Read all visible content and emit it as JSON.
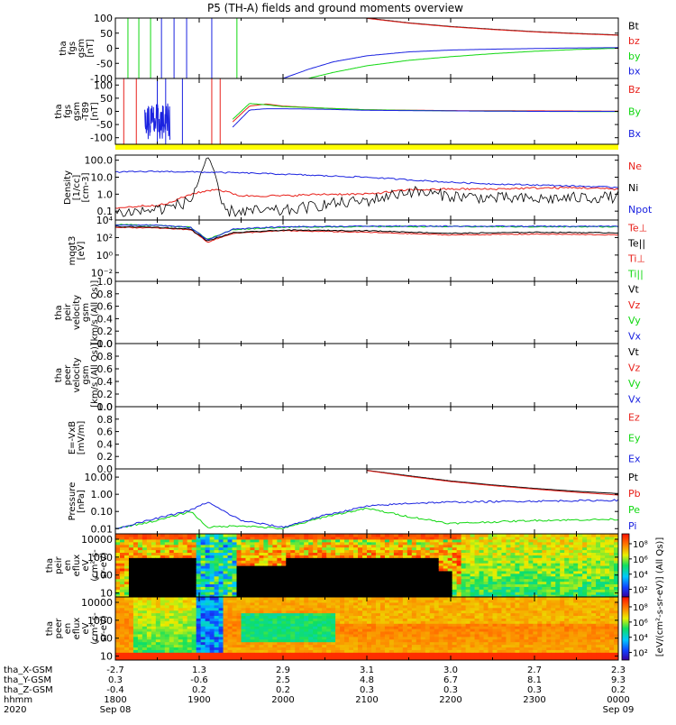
{
  "title": "P5 (TH-A) fields and ground moments overview",
  "colors": {
    "black": "#000000",
    "red": "#e8201a",
    "green": "#10d810",
    "blue": "#1a22e0",
    "yellow": "#ffff00",
    "bg": "#ffffff"
  },
  "panels": [
    {
      "id": "fgs",
      "ylabel": [
        "tha",
        "fgs",
        "gsm",
        "[nT]"
      ],
      "scale": "linear",
      "ylim": [
        -100,
        100
      ],
      "ticks": [
        "100",
        "50",
        "0",
        "-50",
        "-100"
      ],
      "tick_values": [
        100,
        50,
        0,
        -50,
        -100
      ],
      "legend": [
        {
          "label": "Bt",
          "color": "#000000"
        },
        {
          "label": "bz",
          "color": "#e8201a"
        },
        {
          "label": "by",
          "color": "#10d810"
        },
        {
          "label": "bx",
          "color": "#1a22e0"
        }
      ]
    },
    {
      "id": "fgs_dip",
      "ylabel": [
        "tha",
        "fgs",
        "gsm",
        "-T89",
        "[nT]"
      ],
      "scale": "linear",
      "ylim": [
        -125,
        125
      ],
      "ticks": [
        "100",
        "50",
        "0",
        "-50",
        "-100"
      ],
      "tick_values": [
        100,
        50,
        0,
        -50,
        -100
      ],
      "legend": [
        {
          "label": "Bz",
          "color": "#e8201a"
        },
        {
          "label": "By",
          "color": "#10d810"
        },
        {
          "label": "Bx",
          "color": "#1a22e0"
        }
      ]
    },
    {
      "id": "density",
      "ylabel": [
        "Density",
        "[1/cc]",
        "[cm-3]"
      ],
      "scale": "log",
      "ylim": [
        0.03,
        200
      ],
      "ticks": [
        "100.0",
        "10.0",
        "1.0",
        "0.1"
      ],
      "tick_values": [
        100,
        10,
        1,
        0.1
      ],
      "legend": [
        {
          "label": "Ne",
          "color": "#e8201a"
        },
        {
          "label": "Ni",
          "color": "#000000"
        },
        {
          "label": "Npot",
          "color": "#1a22e0"
        }
      ]
    },
    {
      "id": "temp",
      "ylabel": [
        "mqgt3",
        "[eV]"
      ],
      "scale": "log",
      "ylim": [
        0.001,
        10000
      ],
      "ticks": [
        "10⁴",
        "10²",
        "10⁰",
        "10⁻²"
      ],
      "tick_values": [
        10000,
        100,
        1,
        0.01
      ],
      "legend": [
        {
          "label": "Te⊥",
          "color": "#e8201a"
        },
        {
          "label": "Te||",
          "color": "#000000"
        },
        {
          "label": "Ti⊥",
          "color": "#e8201a"
        },
        {
          "label": "Ti||",
          "color": "#10d810"
        }
      ]
    },
    {
      "id": "peir_vel",
      "ylabel": [
        "tha",
        "peir",
        "velocity",
        "gsm",
        "[km/s (All Qs)]"
      ],
      "scale": "linear",
      "ylim": [
        0,
        1
      ],
      "ticks": [
        "1.0",
        "0.8",
        "0.6",
        "0.4",
        "0.2",
        "0.0"
      ],
      "tick_values": [
        1,
        0.8,
        0.6,
        0.4,
        0.2,
        0
      ],
      "legend": [
        {
          "label": "Vt",
          "color": "#000000"
        },
        {
          "label": "Vz",
          "color": "#e8201a"
        },
        {
          "label": "Vy",
          "color": "#10d810"
        },
        {
          "label": "Vx",
          "color": "#1a22e0"
        }
      ]
    },
    {
      "id": "peer_vel",
      "ylabel": [
        "tha",
        "peer",
        "velocity",
        "gsm",
        "[km/s (All Qs)]"
      ],
      "scale": "linear",
      "ylim": [
        0,
        1
      ],
      "ticks": [
        "1.0",
        "0.8",
        "0.6",
        "0.4",
        "0.2",
        "0.0"
      ],
      "tick_values": [
        1,
        0.8,
        0.6,
        0.4,
        0.2,
        0
      ],
      "legend": [
        {
          "label": "Vt",
          "color": "#000000"
        },
        {
          "label": "Vz",
          "color": "#e8201a"
        },
        {
          "label": "Vy",
          "color": "#10d810"
        },
        {
          "label": "Vx",
          "color": "#1a22e0"
        }
      ]
    },
    {
      "id": "efield",
      "ylabel": [
        "E=-VxB",
        "[mV/m]"
      ],
      "scale": "linear",
      "ylim": [
        0,
        1
      ],
      "ticks": [
        "1.0",
        "0.8",
        "0.6",
        "0.4",
        "0.2",
        "0.0"
      ],
      "tick_values": [
        1,
        0.8,
        0.6,
        0.4,
        0.2,
        0
      ],
      "legend": [
        {
          "label": "Ez",
          "color": "#e8201a"
        },
        {
          "label": "Ey",
          "color": "#10d810"
        },
        {
          "label": "Ex",
          "color": "#1a22e0"
        }
      ]
    },
    {
      "id": "pressure",
      "ylabel": [
        "Pressure",
        "[nPa]"
      ],
      "scale": "log",
      "ylim": [
        0.005,
        30
      ],
      "ticks": [
        "10.00",
        "1.00",
        "0.10",
        "0.01"
      ],
      "tick_values": [
        10,
        1,
        0.1,
        0.01
      ],
      "legend": [
        {
          "label": "Pt",
          "color": "#000000"
        },
        {
          "label": "Pb",
          "color": "#e8201a"
        },
        {
          "label": "Pe",
          "color": "#10d810"
        },
        {
          "label": "Pi",
          "color": "#1a22e0"
        }
      ]
    },
    {
      "id": "peir_spec",
      "ylabel": [
        "tha",
        "peir",
        "en",
        "eflux",
        "eV",
        "(cm²-s-",
        "sr-eV)"
      ],
      "scale": "log",
      "ylim": [
        6,
        20000
      ],
      "ticks": [
        "10000",
        "1000",
        "100",
        "10"
      ],
      "tick_values": [
        10000,
        1000,
        100,
        10
      ]
    },
    {
      "id": "peer_spec",
      "ylabel": [
        "tha",
        "peer",
        "en",
        "eflux",
        "eV",
        "(cm²-s-",
        "sr-eV)"
      ],
      "scale": "log",
      "ylim": [
        6,
        20000
      ],
      "ticks": [
        "10000",
        "1000",
        "100",
        "10"
      ],
      "tick_values": [
        10000,
        1000,
        100,
        10
      ]
    }
  ],
  "colorbar": {
    "label": "[eV/(cm²-s-sr-eV)] (All Qs)]",
    "ticks": [
      "10⁸",
      "10⁶",
      "10⁴",
      "10²"
    ],
    "tick_values": [
      8,
      6,
      4,
      2
    ]
  },
  "xaxis": {
    "row_labels": [
      "tha_X-GSM",
      "tha_Y-GSM",
      "tha_Z-GSM",
      "hhmm",
      "2020"
    ],
    "ticks": [
      {
        "x": 1800,
        "X": "-2.7",
        "Y": "0.3",
        "Z": "-0.4",
        "hhmm": "1800",
        "date": "Sep 08"
      },
      {
        "x": 1900,
        "X": "1.3",
        "Y": "-0.6",
        "Z": "0.2",
        "hhmm": "1900",
        "date": ""
      },
      {
        "x": 2000,
        "X": "2.9",
        "Y": "2.5",
        "Z": "0.2",
        "hhmm": "2000",
        "date": ""
      },
      {
        "x": 2100,
        "X": "3.1",
        "Y": "4.8",
        "Z": "0.3",
        "hhmm": "2100",
        "date": ""
      },
      {
        "x": 2200,
        "X": "3.0",
        "Y": "6.7",
        "Z": "0.3",
        "hhmm": "2200",
        "date": ""
      },
      {
        "x": 2300,
        "X": "2.7",
        "Y": "8.1",
        "Z": "0.3",
        "hhmm": "2300",
        "date": ""
      },
      {
        "x": 2400,
        "X": "2.3",
        "Y": "9.3",
        "Z": "0.2",
        "hhmm": "0000",
        "date": "Sep 09"
      }
    ]
  },
  "chart_data": {
    "type": "line",
    "title": "P5 (TH-A) fields and ground moments overview",
    "x_axis": "UT time, 2020 Sep 08 18:00 – Sep 09 00:00",
    "xlim_hours": [
      18,
      24
    ],
    "series": [
      {
        "panel": "fgs",
        "name": "Bt",
        "x": [
          21.0,
          21.5,
          22.0,
          22.5,
          23.0,
          23.5,
          24.0
        ],
        "values": [
          100,
          84,
          72,
          63,
          55,
          49,
          44
        ]
      },
      {
        "panel": "fgs",
        "name": "bz",
        "x": [
          21.0,
          21.5,
          22.0,
          22.5,
          23.0,
          23.5,
          24.0
        ],
        "values": [
          99,
          83,
          71,
          62,
          54,
          48,
          43
        ]
      },
      {
        "panel": "fgs",
        "name": "by",
        "x": [
          20.3,
          20.6,
          21.0,
          21.5,
          22.0,
          22.5,
          23.0,
          23.5,
          24.0
        ],
        "values": [
          -100,
          -80,
          -58,
          -40,
          -28,
          -18,
          -10,
          -4,
          0
        ]
      },
      {
        "panel": "fgs",
        "name": "bx",
        "x": [
          20.0,
          20.3,
          20.6,
          21.0,
          21.5,
          22.0,
          22.5,
          23.0,
          23.5,
          24.0
        ],
        "values": [
          -100,
          -70,
          -45,
          -25,
          -12,
          -6,
          -3,
          -1,
          1,
          2
        ]
      },
      {
        "panel": "fgs_dip",
        "name": "Bz",
        "x": [
          19.4,
          19.6,
          19.8,
          20.0,
          20.5,
          21.0,
          22.0,
          23.0,
          24.0
        ],
        "values": [
          -40,
          20,
          28,
          20,
          12,
          6,
          3,
          2,
          1
        ]
      },
      {
        "panel": "fgs_dip",
        "name": "By",
        "x": [
          19.4,
          19.6,
          19.8,
          20.0,
          20.5,
          21.0,
          22.0,
          23.0,
          24.0
        ],
        "values": [
          -30,
          30,
          25,
          18,
          12,
          6,
          2,
          0,
          -1
        ]
      },
      {
        "panel": "fgs_dip",
        "name": "Bx",
        "x": [
          19.4,
          19.6,
          19.8,
          20.0,
          20.5,
          21.0,
          22.0,
          23.0,
          24.0
        ],
        "values": [
          -60,
          5,
          10,
          10,
          8,
          4,
          2,
          0,
          0
        ]
      },
      {
        "panel": "density",
        "name": "Ne",
        "x": [
          18.0,
          18.3,
          18.6,
          18.9,
          19.2,
          19.5,
          20.0,
          20.5,
          21.0,
          21.5,
          22.0,
          22.5,
          23.0,
          23.5,
          24.0
        ],
        "values": [
          0.15,
          0.2,
          0.25,
          1.0,
          2.0,
          0.8,
          0.8,
          1.0,
          1.0,
          1.8,
          2.0,
          2.0,
          2.3,
          2.4,
          2.0
        ]
      },
      {
        "panel": "density",
        "name": "Ni",
        "x": [
          18.0,
          18.3,
          18.6,
          18.9,
          19.1,
          19.3,
          19.5,
          20.0,
          20.5,
          21.0,
          21.5,
          22.0,
          22.5,
          23.0,
          23.5,
          24.0
        ],
        "values": [
          0.08,
          0.1,
          0.15,
          0.4,
          200,
          0.1,
          0.1,
          0.1,
          0.25,
          0.4,
          1.5,
          0.8,
          0.6,
          0.5,
          0.6,
          0.7
        ]
      },
      {
        "panel": "density",
        "name": "Npot",
        "x": [
          18.0,
          18.5,
          19.0,
          19.5,
          20.0,
          20.5,
          21.0,
          21.5,
          22.0,
          22.5,
          23.0,
          23.5,
          24.0
        ],
        "values": [
          20,
          22,
          20,
          18,
          15,
          12,
          10,
          7,
          5,
          4,
          3.5,
          3,
          2.5
        ]
      },
      {
        "panel": "temp",
        "name": "Te⊥",
        "x": [
          18.0,
          18.5,
          18.9,
          19.1,
          19.4,
          20.0,
          21.0,
          22.0,
          23.0,
          24.0
        ],
        "values": [
          1500,
          1200,
          800,
          30,
          300,
          600,
          400,
          200,
          250,
          200
        ]
      },
      {
        "panel": "temp",
        "name": "Te||",
        "x": [
          18.0,
          18.5,
          18.9,
          19.1,
          19.4,
          20.0,
          21.0,
          22.0,
          23.0,
          24.0
        ],
        "values": [
          1800,
          1500,
          900,
          40,
          350,
          700,
          600,
          300,
          400,
          350
        ]
      },
      {
        "panel": "temp",
        "name": "Ti||",
        "x": [
          18.0,
          18.5,
          18.9,
          19.1,
          19.4,
          20.0,
          21.0,
          22.0,
          23.0,
          24.0
        ],
        "values": [
          3000,
          2500,
          1500,
          60,
          800,
          1500,
          1800,
          1800,
          1700,
          1700
        ]
      },
      {
        "panel": "temp",
        "name": "Ti⊥",
        "x": [
          18.0,
          18.5,
          18.9,
          19.1,
          19.4,
          20.0,
          21.0,
          22.0,
          23.0,
          24.0
        ],
        "values": [
          2800,
          2600,
          1400,
          50,
          900,
          1700,
          2000,
          2000,
          1900,
          1900
        ]
      },
      {
        "panel": "pressure",
        "name": "Pt",
        "x": [
          21.0,
          21.5,
          22.0,
          22.5,
          23.0,
          23.5,
          24.0
        ],
        "values": [
          25,
          12,
          6,
          3.5,
          2.2,
          1.5,
          1.1
        ]
      },
      {
        "panel": "pressure",
        "name": "Pb",
        "x": [
          21.0,
          21.5,
          22.0,
          22.5,
          23.0,
          23.5,
          24.0
        ],
        "values": [
          24,
          11,
          5.5,
          3.2,
          2.0,
          1.3,
          0.9
        ]
      },
      {
        "panel": "pressure",
        "name": "Pe",
        "x": [
          18.0,
          18.5,
          18.9,
          19.1,
          19.5,
          20.0,
          20.5,
          21.0,
          21.5,
          22.0,
          23.0,
          24.0
        ],
        "values": [
          0.01,
          0.03,
          0.1,
          0.012,
          0.015,
          0.01,
          0.05,
          0.15,
          0.05,
          0.02,
          0.03,
          0.035
        ]
      },
      {
        "panel": "pressure",
        "name": "Pi",
        "x": [
          18.0,
          18.5,
          18.9,
          19.1,
          19.3,
          19.5,
          20.0,
          20.5,
          21.0,
          21.5,
          22.0,
          23.0,
          24.0
        ],
        "values": [
          0.01,
          0.04,
          0.12,
          0.35,
          0.1,
          0.03,
          0.012,
          0.06,
          0.2,
          0.3,
          0.35,
          0.4,
          0.45
        ]
      }
    ]
  }
}
